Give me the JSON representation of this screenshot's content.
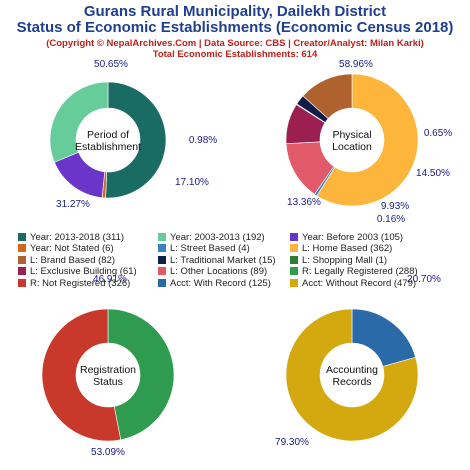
{
  "header": {
    "title_line1": "Gurans Rural Municipality, Dailekh District",
    "title_line2": "Status of Economic Establishments (Economic Census 2018)",
    "credits": "(Copyright © NepalArchives.Com | Data Source: CBS | Creator/Analyst: Milan Karki)",
    "total": "Total Economic Establishments: 614"
  },
  "chart_data": [
    {
      "type": "pie",
      "center_label": [
        "Period of",
        "Establishment"
      ],
      "slices": [
        {
          "label": "Year: 2013-2018",
          "value": 311,
          "pct": "50.65%",
          "color": "#1a6b64"
        },
        {
          "label": "Year: Not Stated",
          "value": 6,
          "pct": "0.98%",
          "color": "#d2691e"
        },
        {
          "label": "Year: Before 2003",
          "value": 105,
          "pct": "17.10%",
          "color": "#6a35c8"
        },
        {
          "label": "Year: 2003-2013",
          "value": 192,
          "pct": "31.27%",
          "color": "#66cc99"
        }
      ]
    },
    {
      "type": "pie",
      "center_label": [
        "Physical",
        "Location"
      ],
      "slices": [
        {
          "label": "L: Home Based",
          "value": 362,
          "pct": "58.96%",
          "color": "#fdb53c"
        },
        {
          "label": "L: Street Based",
          "value": 4,
          "pct": "0.65%",
          "color": "#3a82c8"
        },
        {
          "label": "L: Other Locations",
          "value": 89,
          "pct": "14.50%",
          "color": "#e05a6a"
        },
        {
          "label": "L: Exclusive Building",
          "value": 61,
          "pct": "9.93%",
          "color": "#9b1f50"
        },
        {
          "label": "L: Shopping Mall",
          "value": 1,
          "pct": "0.16%",
          "color": "#2e7d32"
        },
        {
          "label": "L: Traditional Market",
          "value": 15,
          "pct": "",
          "color": "#0d1e4a"
        },
        {
          "label": "L: Brand Based",
          "value": 82,
          "pct": "13.36%",
          "color": "#b0622e"
        }
      ]
    },
    {
      "type": "pie",
      "center_label": [
        "Registration",
        "Status"
      ],
      "slices": [
        {
          "label": "R: Legally Registered",
          "value": 288,
          "pct": "46.91%",
          "color": "#2e9b4e"
        },
        {
          "label": "R: Not Registered",
          "value": 326,
          "pct": "53.09%",
          "color": "#c8392b"
        }
      ]
    },
    {
      "type": "pie",
      "center_label": [
        "Accounting",
        "Records"
      ],
      "slices": [
        {
          "label": "Acct: With Record",
          "value": 125,
          "pct": "20.70%",
          "color": "#2a6aa8"
        },
        {
          "label": "Acct: Without Record",
          "value": 479,
          "pct": "79.30%",
          "color": "#d4a80f"
        }
      ]
    }
  ],
  "legend": [
    {
      "text": "Year: 2013-2018 (311)",
      "color": "#1a6b64"
    },
    {
      "text": "Year: 2003-2013 (192)",
      "color": "#66cc99"
    },
    {
      "text": "Year: Before 2003 (105)",
      "color": "#6a35c8"
    },
    {
      "text": "Year: Not Stated (6)",
      "color": "#d2691e"
    },
    {
      "text": "L: Street Based (4)",
      "color": "#3a82c8"
    },
    {
      "text": "L: Home Based (362)",
      "color": "#fdb53c"
    },
    {
      "text": "L: Brand Based (82)",
      "color": "#b0622e"
    },
    {
      "text": "L: Traditional Market (15)",
      "color": "#0d1e4a"
    },
    {
      "text": "L: Shopping Mall (1)",
      "color": "#2e7d32"
    },
    {
      "text": "L: Exclusive Building (61)",
      "color": "#9b1f50"
    },
    {
      "text": "L: Other Locations (89)",
      "color": "#e05a6a"
    },
    {
      "text": "R: Legally Registered (288)",
      "color": "#2e9b4e"
    },
    {
      "text": "R: Not Registered (326)",
      "color": "#c8392b"
    },
    {
      "text": "Acct: With Record (125)",
      "color": "#2a6aa8"
    },
    {
      "text": "Acct: Without Record (479)",
      "color": "#d4a80f"
    }
  ],
  "colors": {
    "title": "#1f3f8f",
    "subtitle": "#c0201a",
    "pct_label": "#1a1a8c"
  }
}
